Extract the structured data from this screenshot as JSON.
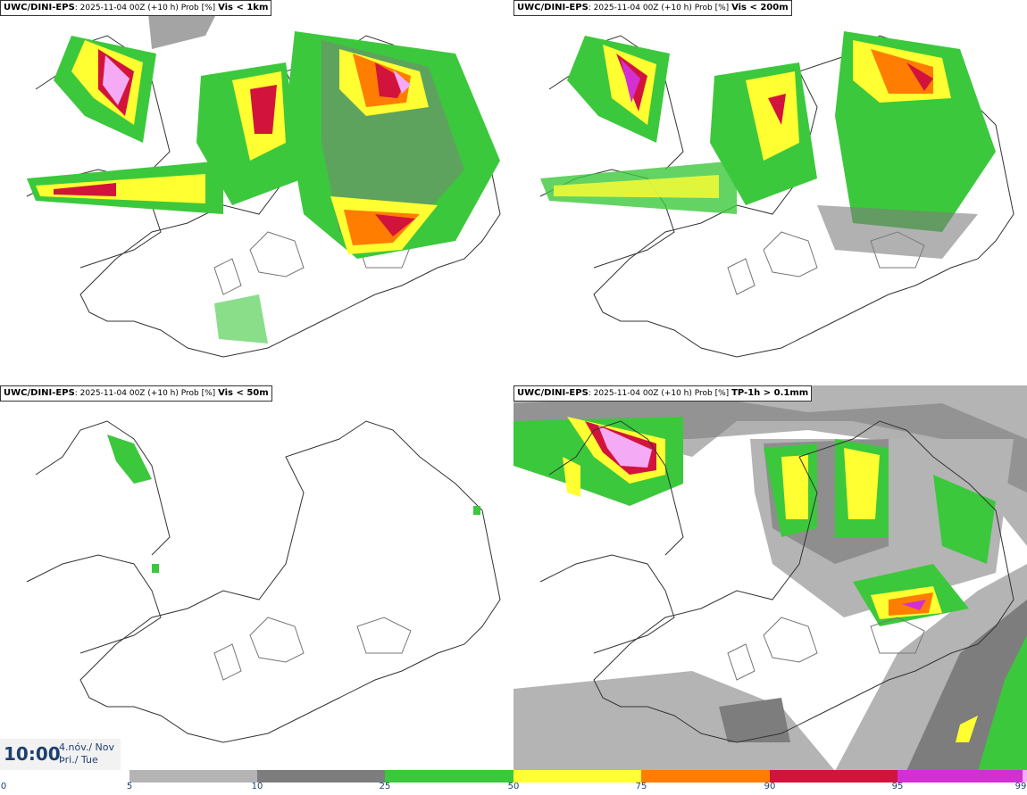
{
  "panels": [
    {
      "model": "UWC/DINI-EPS",
      "run": "2025-11-04 00Z (+10 h) Prob [%]",
      "field": "Vis < 1km"
    },
    {
      "model": "UWC/DINI-EPS",
      "run": "2025-11-04 00Z (+10 h) Prob [%]",
      "field": "Vis < 200m"
    },
    {
      "model": "UWC/DINI-EPS",
      "run": "2025-11-04 00Z (+10 h) Prob [%]",
      "field": "Vis < 50m"
    },
    {
      "model": "UWC/DINI-EPS",
      "run": "2025-11-04 00Z (+10 h) Prob [%]",
      "field": "TP-1h > 0.1mm"
    }
  ],
  "valid_time": {
    "time": "10:00",
    "date_line1": "4.nóv./ Nov",
    "date_line2": "Þri./ Tue"
  },
  "legend": {
    "ticks": [
      "0",
      "5",
      "10",
      "25",
      "50",
      "75",
      "90",
      "95",
      "99"
    ],
    "colors": [
      "#b4b4b4",
      "#7d7d7d",
      "#3cc83c",
      "#ffff32",
      "#ff7d00",
      "#d2143c",
      "#d230d2",
      "#f5aaf5"
    ]
  }
}
